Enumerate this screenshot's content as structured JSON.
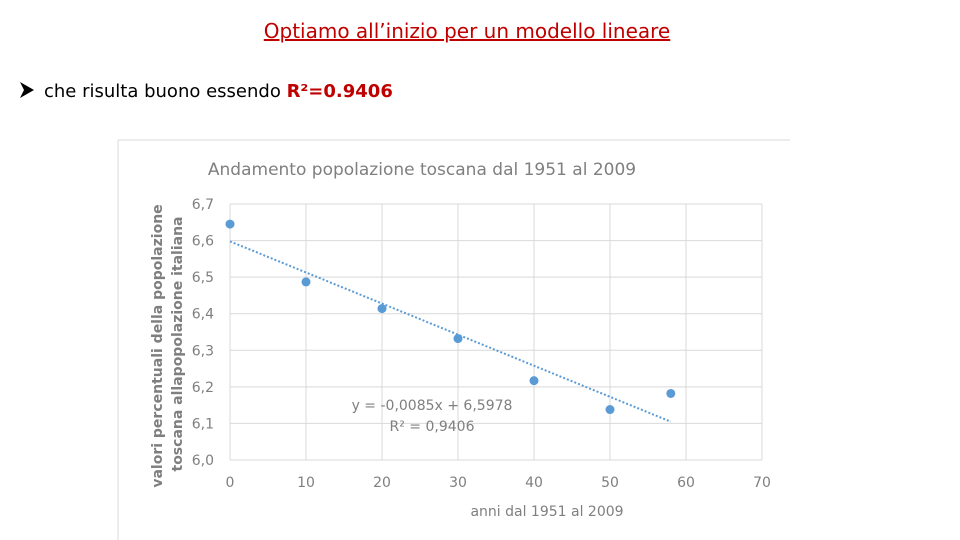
{
  "slide": {
    "title": "Optiamo all’inizio per un modello lineare",
    "bullet": {
      "text": "che risulta buono essendo ",
      "highlight": "R²=0.9406"
    }
  },
  "chart_data": {
    "type": "scatter",
    "title": "Andamento popolazione toscana dal 1951 al 2009",
    "xlabel": "anni dal 1951 al 2009",
    "ylabel": [
      "valori percentuali della popolazione",
      "toscana allapopolazione italiana"
    ],
    "x": [
      0,
      10,
      20,
      30,
      40,
      50,
      58
    ],
    "values": [
      6.645,
      6.487,
      6.414,
      6.332,
      6.217,
      6.138,
      6.182
    ],
    "color": "#5b9bd5",
    "xlim": [
      0,
      70
    ],
    "xticks": [
      0,
      10,
      20,
      30,
      40,
      50,
      60,
      70
    ],
    "ylim": [
      6.0,
      6.7
    ],
    "yticks": [
      {
        "value": 6.0,
        "label": "6,0"
      },
      {
        "value": 6.1,
        "label": "6,1"
      },
      {
        "value": 6.2,
        "label": "6,2"
      },
      {
        "value": 6.3,
        "label": "6,3"
      },
      {
        "value": 6.4,
        "label": "6,4"
      },
      {
        "value": 6.5,
        "label": "6,5"
      },
      {
        "value": 6.6,
        "label": "6,6"
      },
      {
        "value": 6.7,
        "label": "6,7"
      }
    ],
    "grid": true,
    "trendline": {
      "slope": -0.0085,
      "intercept": 6.5978,
      "label": "y = -0,0085x + 6,5978",
      "r2": 0.9406,
      "r2_label": "R² = 0,9406"
    }
  }
}
